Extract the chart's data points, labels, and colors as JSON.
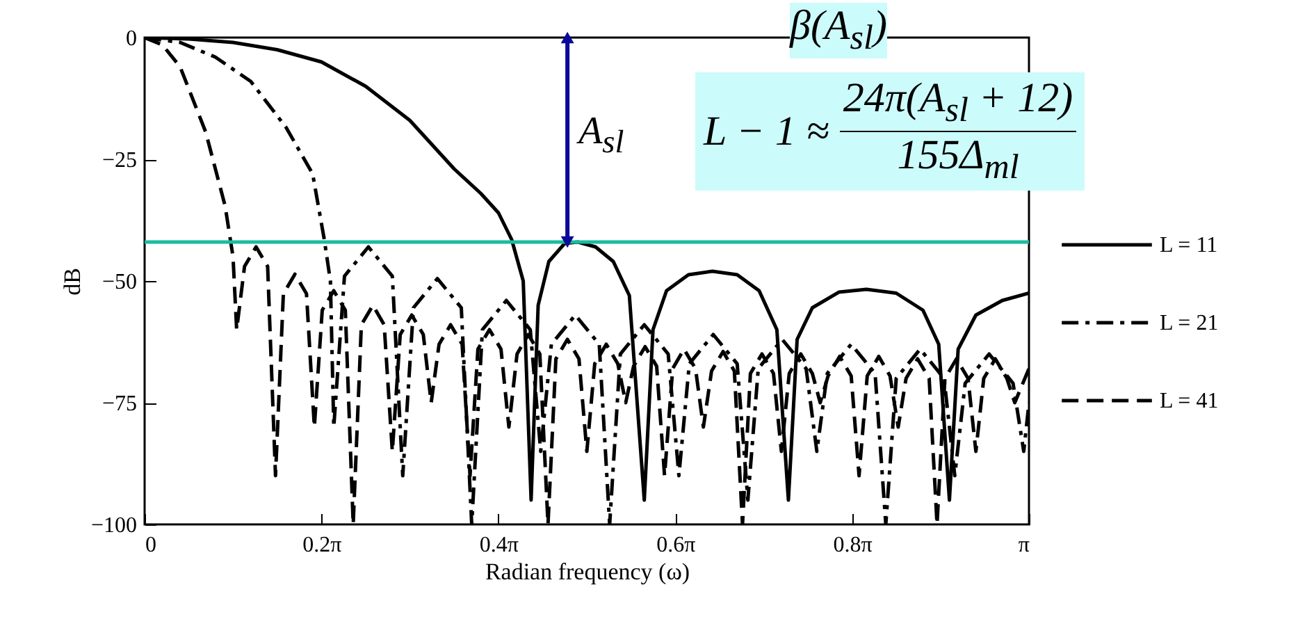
{
  "chart_data": {
    "type": "line",
    "xlabel": "Radian frequency (ω)",
    "ylabel": "dB",
    "xlim": [
      0,
      3.1416
    ],
    "ylim": [
      -100,
      0
    ],
    "xticks": [
      0,
      {
        "value": 0.6283,
        "label": "0.2π"
      },
      {
        "value": 1.2566,
        "label": "0.4π"
      },
      {
        "value": 1.885,
        "label": "0.6π"
      },
      {
        "value": 2.5133,
        "label": "0.8π"
      },
      {
        "value": 3.1416,
        "label": "π"
      }
    ],
    "yticks": [
      0,
      {
        "value": -25,
        "label": "−25"
      },
      {
        "value": -50,
        "label": "−50"
      },
      {
        "value": -75,
        "label": "−75"
      },
      {
        "value": -100,
        "label": "−100"
      }
    ],
    "legend": "right",
    "series": [
      {
        "name": "L = 11",
        "color": "#000000",
        "line_style": "solid",
        "x": [
          0,
          0.157,
          0.314,
          0.471,
          0.628,
          0.785,
          0.942,
          1.1,
          1.194,
          1.257,
          1.304,
          1.345,
          1.373,
          1.398,
          1.436,
          1.492,
          1.539,
          1.602,
          1.665,
          1.722,
          1.775,
          1.806,
          1.854,
          1.932,
          2.017,
          2.105,
          2.183,
          2.246,
          2.287,
          2.318,
          2.372,
          2.466,
          2.564,
          2.67,
          2.765,
          2.821,
          2.859,
          2.89,
          2.953,
          3.047,
          3.1416
        ],
        "values": [
          0,
          -0.3,
          -1,
          -2.5,
          -5,
          -10,
          -17,
          -27,
          -32,
          -36,
          -41.5,
          -50,
          -95,
          -55,
          -46,
          -42.3,
          -42,
          -43,
          -46,
          -53,
          -95,
          -60,
          -52,
          -48.7,
          -48,
          -48.7,
          -52,
          -60,
          -95,
          -62,
          -55.5,
          -52.3,
          -51.7,
          -52.5,
          -56,
          -63,
          -95,
          -64,
          -57,
          -54,
          -52.5
        ]
      },
      {
        "name": "L = 21",
        "color": "#000000",
        "line_style": "dashdot",
        "x": [
          0,
          0.126,
          0.251,
          0.377,
          0.503,
          0.597,
          0.638,
          0.66,
          0.672,
          0.71,
          0.795,
          0.88,
          0.917,
          0.955,
          1.04,
          1.125,
          1.162,
          1.2,
          1.285,
          1.37,
          1.407,
          1.445,
          1.53,
          1.615,
          1.652,
          1.69,
          1.775,
          1.86,
          1.898,
          1.935,
          2.02,
          2.105,
          2.143,
          2.18,
          2.265,
          2.35,
          2.388,
          2.425,
          2.51,
          2.595,
          2.633,
          2.67,
          2.755,
          2.84,
          2.878,
          2.915,
          3.0,
          3.085,
          3.123,
          3.1416
        ],
        "values": [
          0,
          -1,
          -4,
          -9,
          -18.5,
          -28,
          -41.4,
          -50,
          -80,
          -49,
          -43,
          -49,
          -90,
          -55.5,
          -49.5,
          -55.5,
          -100,
          -60,
          -54,
          -60,
          -85,
          -63,
          -57,
          -63,
          -100,
          -65,
          -59,
          -65,
          -90,
          -67,
          -61,
          -67,
          -95,
          -68,
          -62,
          -68,
          -85,
          -69,
          -63,
          -69,
          -100,
          -70,
          -64,
          -70,
          -90,
          -71,
          -65,
          -71,
          -85,
          -75
        ]
      },
      {
        "name": "L = 41",
        "color": "#000000",
        "line_style": "dashed",
        "x": [
          0,
          0.063,
          0.126,
          0.217,
          0.286,
          0.314,
          0.327,
          0.355,
          0.396,
          0.437,
          0.465,
          0.493,
          0.534,
          0.575,
          0.603,
          0.631,
          0.672,
          0.713,
          0.741,
          0.77,
          0.811,
          0.851,
          0.88,
          0.908,
          0.949,
          0.99,
          1.018,
          1.046,
          1.087,
          1.128,
          1.156,
          1.184,
          1.225,
          1.266,
          1.294,
          1.323,
          1.363,
          1.404,
          1.433,
          1.461,
          1.502,
          1.543,
          1.571,
          1.599,
          1.64,
          1.681,
          1.709,
          1.737,
          1.778,
          1.819,
          1.847,
          1.876,
          1.916,
          1.957,
          1.985,
          2.014,
          2.055,
          2.095,
          2.124,
          2.152,
          2.193,
          2.234,
          2.262,
          2.29,
          2.331,
          2.372,
          2.4,
          2.428,
          2.469,
          2.51,
          2.538,
          2.567,
          2.608,
          2.648,
          2.677,
          2.705,
          2.746,
          2.787,
          2.815,
          2.843,
          2.884,
          2.925,
          2.953,
          2.981,
          3.022,
          3.063,
          3.091,
          3.1416
        ],
        "values": [
          0,
          -1.5,
          -6,
          -19.4,
          -34.6,
          -45,
          -60,
          -47,
          -43,
          -47,
          -90,
          -52.6,
          -48.6,
          -52.6,
          -80,
          -56,
          -52,
          -56,
          -100,
          -59,
          -55,
          -59,
          -85,
          -61,
          -57,
          -61,
          -75,
          -63,
          -59,
          -63,
          -90,
          -64,
          -60,
          -64,
          -80,
          -65,
          -61,
          -65,
          -100,
          -66,
          -62,
          -66,
          -85,
          -67,
          -63,
          -67,
          -75,
          -67.5,
          -63.5,
          -67.5,
          -90,
          -68,
          -64,
          -68,
          -80,
          -68.5,
          -64.5,
          -68.5,
          -100,
          -69,
          -65,
          -69,
          -85,
          -69,
          -65,
          -69,
          -75,
          -69.5,
          -65.5,
          -69.5,
          -90,
          -69.5,
          -65.5,
          -69.5,
          -80,
          -70,
          -66,
          -70,
          -100,
          -70,
          -66,
          -70,
          -85,
          -70,
          -66,
          -70,
          -75,
          -68
        ]
      }
    ],
    "ref_lines": [
      {
        "axis": "y",
        "value": -42,
        "color": "#1abc9c"
      }
    ],
    "annotations": [
      {
        "text": "A$_{sl}$",
        "x": 1.502,
        "y": -42
      },
      "β(A$_{sl}$)",
      "L − 1 ≈",
      "24π(A$_{sl}$ + 12)",
      "155Δ$_{ml}$"
    ]
  }
}
